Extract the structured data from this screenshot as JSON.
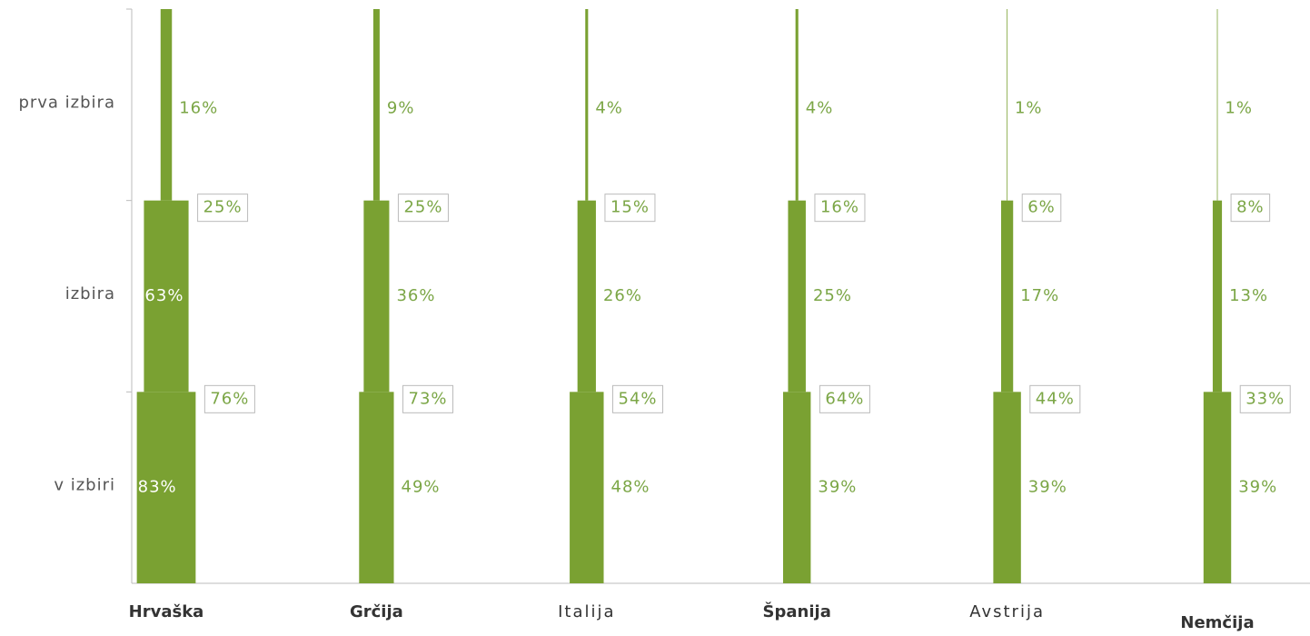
{
  "chart_data": {
    "type": "funnel",
    "categories": [
      "Hrvaška",
      "Grčija",
      "Italija",
      "Španija",
      "Avstrija",
      "Nemčija"
    ],
    "color": "#7aa132",
    "series": [
      {
        "name": "prva izbira",
        "values": [
          16,
          9,
          4,
          4,
          1,
          1
        ],
        "value_labels": [
          "16%",
          "9%",
          "4%",
          "4%",
          "1%",
          "1%"
        ]
      },
      {
        "name": "izbira",
        "values": [
          63,
          36,
          26,
          25,
          17,
          13
        ],
        "value_labels": [
          "63%",
          "36%",
          "26%",
          "25%",
          "17%",
          "13%"
        ]
      },
      {
        "name": "v izbiri",
        "values": [
          83,
          49,
          48,
          39,
          39,
          39
        ],
        "value_labels": [
          "83%",
          "49%",
          "48%",
          "39%",
          "39%",
          "39%"
        ]
      }
    ],
    "conversions": [
      {
        "values": [
          25,
          25,
          15,
          16,
          6,
          8
        ],
        "value_labels": [
          "25%",
          "25%",
          "15%",
          "16%",
          "6%",
          "8%"
        ]
      },
      {
        "values": [
          76,
          73,
          54,
          64,
          44,
          33
        ],
        "value_labels": [
          "76%",
          "73%",
          "54%",
          "64%",
          "44%",
          "33%"
        ]
      }
    ]
  }
}
